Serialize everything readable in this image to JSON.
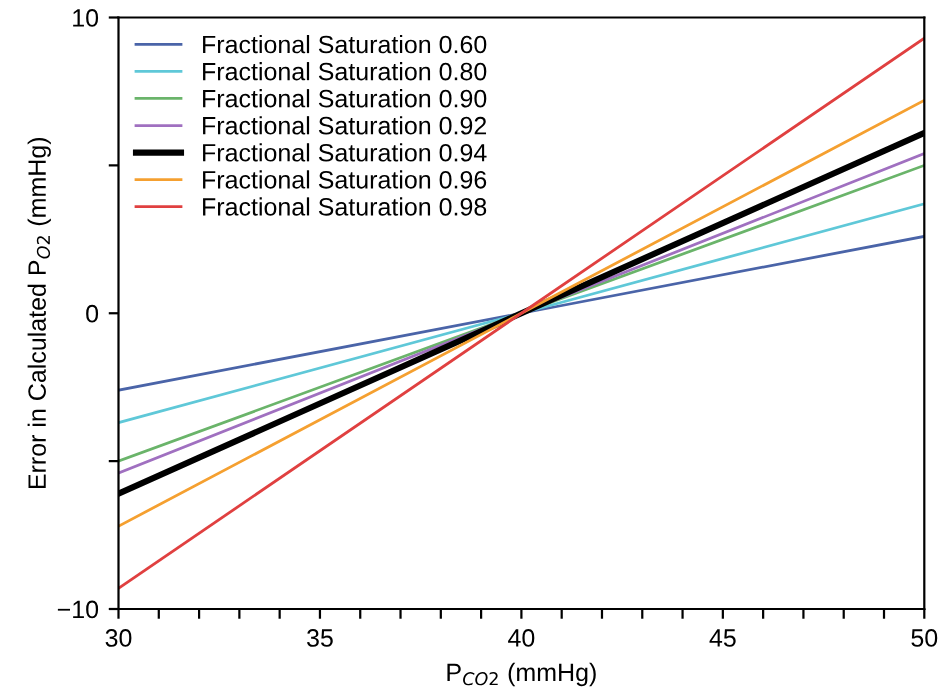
{
  "chart_data": {
    "type": "line",
    "xlabel": "P$_{CO2}$ (mmHg)",
    "ylabel": "Error in Calculated P$_{O2}$ (mmHg)",
    "x": [
      30,
      40,
      50
    ],
    "series": [
      {
        "name": "Fractional Saturation 0.60",
        "color": "#4a64a8",
        "values": [
          -2.6,
          0,
          2.6
        ]
      },
      {
        "name": "Fractional Saturation 0.80",
        "color": "#5fc8d8",
        "values": [
          -3.7,
          0,
          3.7
        ]
      },
      {
        "name": "Fractional Saturation 0.90",
        "color": "#6ab46a",
        "values": [
          -5.0,
          0,
          5.0
        ]
      },
      {
        "name": "Fractional Saturation 0.92",
        "color": "#a070c0",
        "values": [
          -5.4,
          0,
          5.4
        ]
      },
      {
        "name": "Fractional Saturation 0.94",
        "color": "#000000",
        "values": [
          -6.1,
          0,
          6.1
        ]
      },
      {
        "name": "Fractional Saturation 0.96",
        "color": "#f5a030",
        "values": [
          -7.2,
          0,
          7.2
        ]
      },
      {
        "name": "Fractional Saturation 0.98",
        "color": "#e04040",
        "values": [
          -9.3,
          0,
          9.3
        ]
      }
    ],
    "xlim": [
      30,
      50
    ],
    "xticks": [
      30,
      {
        "value": 31,
        "label": null
      },
      {
        "value": 32,
        "label": null
      },
      {
        "value": 33,
        "label": null
      },
      {
        "value": 34,
        "label": null
      },
      35,
      {
        "value": 36,
        "label": null
      },
      {
        "value": 37,
        "label": null
      },
      {
        "value": 38,
        "label": null
      },
      {
        "value": 39,
        "label": null
      },
      40,
      {
        "value": 41,
        "label": null
      },
      {
        "value": 42,
        "label": null
      },
      {
        "value": 43,
        "label": null
      },
      {
        "value": 44,
        "label": null
      },
      45,
      {
        "value": 46,
        "label": null
      },
      {
        "value": 47,
        "label": null
      },
      {
        "value": 48,
        "label": null
      },
      {
        "value": 49,
        "label": null
      },
      50
    ],
    "ylim": [
      -10,
      10
    ],
    "yticks": [
      -10,
      {
        "value": -5,
        "label": null
      },
      0,
      {
        "value": 5,
        "label": null
      },
      10
    ],
    "grid": false,
    "legend": "top left",
    "marker": "none",
    "line_style": "solid"
  }
}
